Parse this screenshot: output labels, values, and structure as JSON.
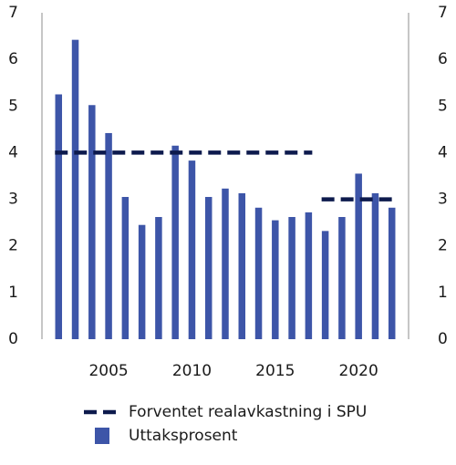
{
  "chart_data": {
    "type": "bar",
    "x": [
      2002,
      2003,
      2004,
      2005,
      2006,
      2007,
      2008,
      2009,
      2010,
      2011,
      2012,
      2013,
      2014,
      2015,
      2016,
      2017,
      2018,
      2019,
      2020,
      2021,
      2022
    ],
    "series": [
      {
        "name": "Uttaksprosent",
        "kind": "bar",
        "color": "#3d55a8",
        "values": [
          5.25,
          6.42,
          5.02,
          4.42,
          3.05,
          2.45,
          2.62,
          4.15,
          3.83,
          3.05,
          3.23,
          3.13,
          2.82,
          2.55,
          2.62,
          2.72,
          2.32,
          2.62,
          3.55,
          3.13,
          2.82
        ]
      },
      {
        "name": "Forventet realavkastning i SPU",
        "kind": "dashed-line",
        "color": "#0d1a4d",
        "segments": [
          {
            "x_start": 2002,
            "x_end": 2017,
            "value": 4
          },
          {
            "x_start": 2018,
            "x_end": 2022,
            "value": 3
          }
        ]
      }
    ],
    "x_ticks": [
      "2005",
      "2010",
      "2015",
      "2020"
    ],
    "x_tick_values": [
      2005,
      2010,
      2015,
      2020
    ],
    "y_ticks_left": [
      "0",
      "1",
      "2",
      "3",
      "4",
      "5",
      "6",
      "7"
    ],
    "y_ticks_right": [
      "0",
      "1",
      "2",
      "3",
      "4",
      "5",
      "6",
      "7"
    ],
    "ylim": [
      0,
      7
    ],
    "grid": false,
    "legend": {
      "placement": "bottom",
      "entries": [
        {
          "label": "Forventet realavkastning i SPU",
          "symbol": "dashed-line",
          "color": "#0d1a4d"
        },
        {
          "label": "Uttaksprosent",
          "symbol": "bar",
          "color": "#3d55a8"
        }
      ]
    },
    "title": "",
    "xlabel": "",
    "ylabel": ""
  }
}
